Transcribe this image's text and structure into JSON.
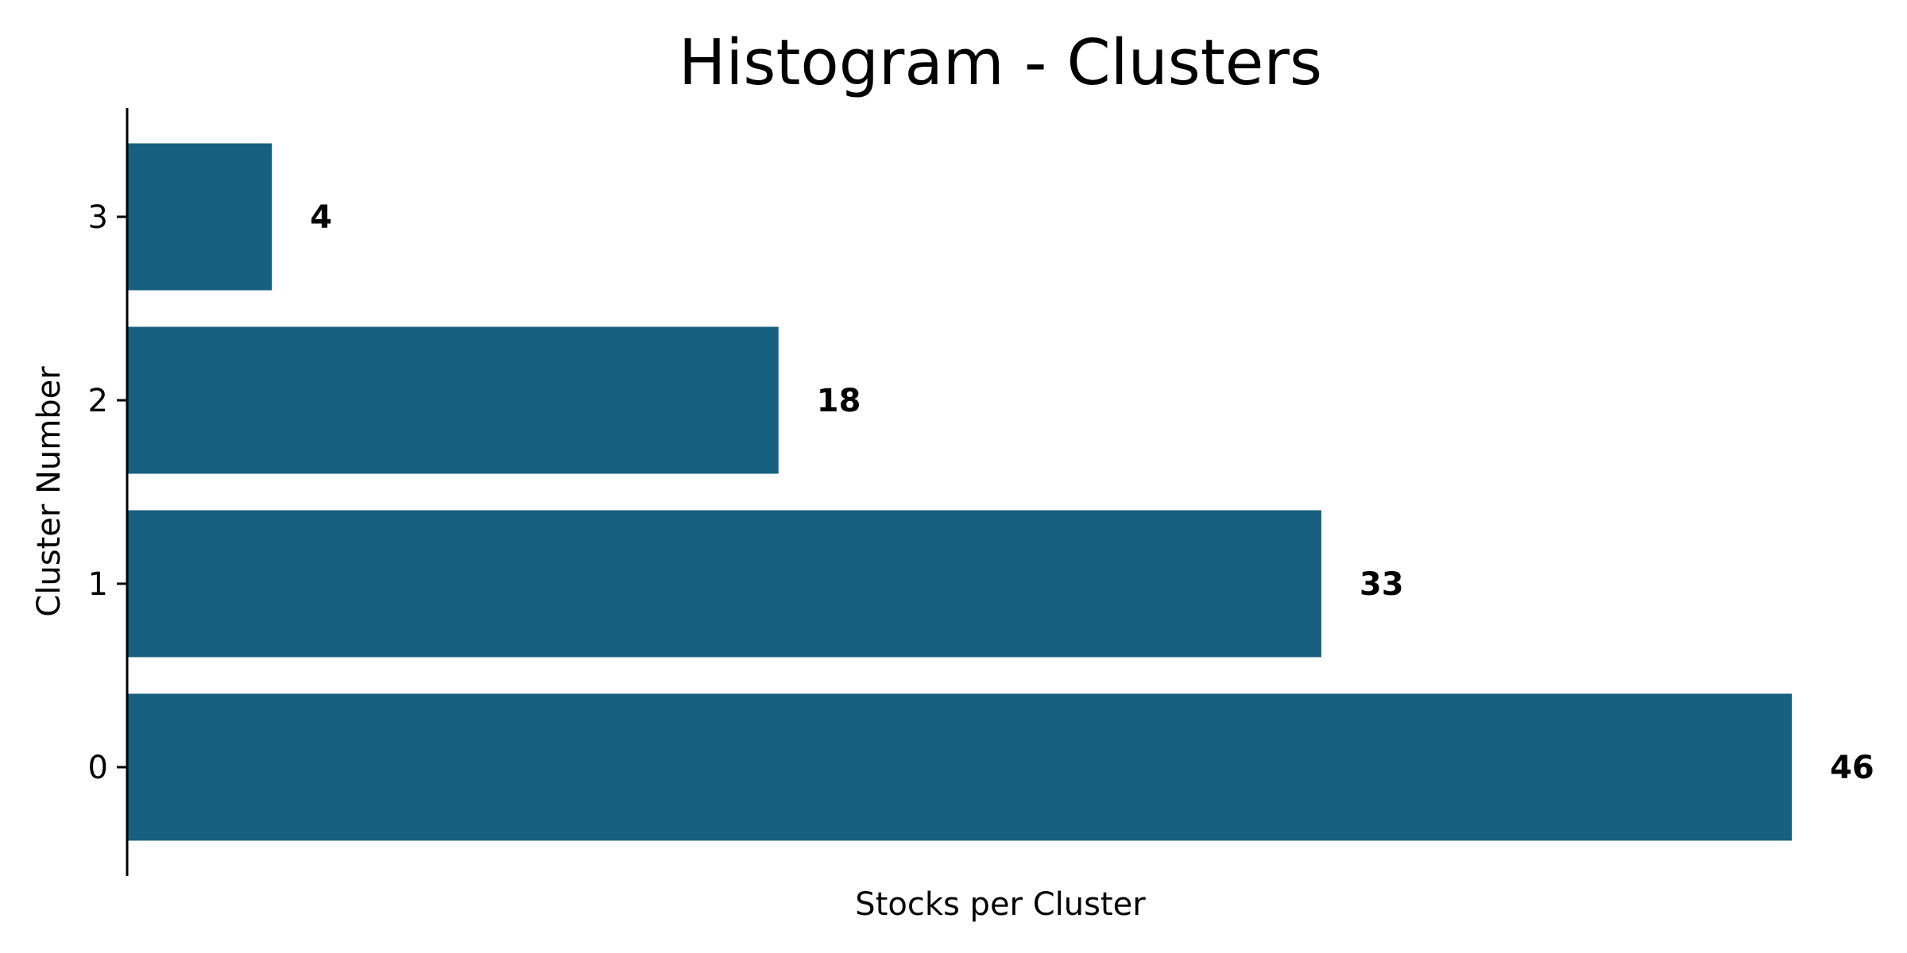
{
  "chart_data": {
    "type": "bar",
    "orientation": "horizontal",
    "title": "Histogram - Clusters",
    "xlabel": "Stocks per Cluster",
    "ylabel": "Cluster Number",
    "categories": [
      "0",
      "1",
      "2",
      "3"
    ],
    "values": [
      46,
      33,
      18,
      4
    ],
    "data_labels": [
      "46",
      "33",
      "18",
      "4"
    ],
    "xlim": [
      0,
      46
    ],
    "x_ticks_visible": false,
    "grid": false,
    "legend": "none",
    "bar_color": "#17607f"
  }
}
